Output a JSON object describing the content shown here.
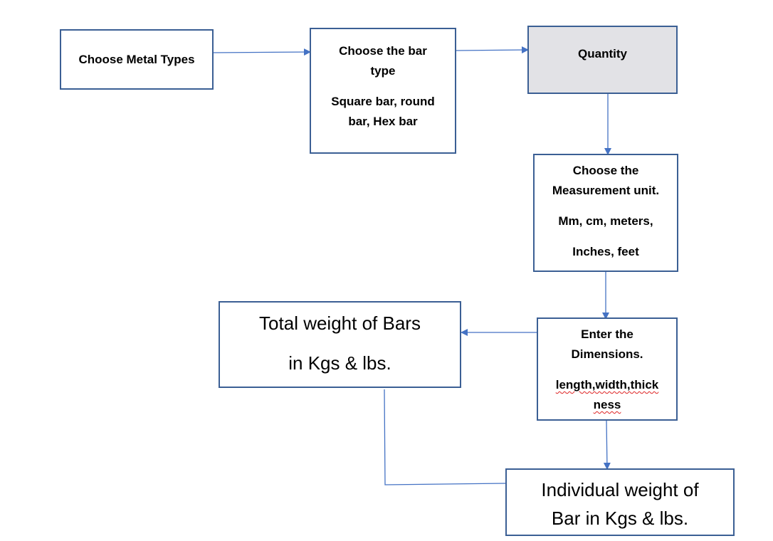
{
  "nodes": {
    "metal": {
      "label": "Choose Metal Types"
    },
    "bar": {
      "line1": "Choose the bar",
      "line2": "type",
      "line3": "Square bar, round",
      "line4": "bar, Hex bar"
    },
    "quantity": {
      "label": "Quantity",
      "fill": "#e2e2e6"
    },
    "unit": {
      "line1": "Choose the",
      "line2": "Measurement unit.",
      "line3": "Mm, cm, meters,",
      "line4": "Inches, feet"
    },
    "dims": {
      "line1": "Enter the",
      "line2": "Dimensions.",
      "line3": "length,width,thick",
      "line4": "ness"
    },
    "total": {
      "line1": "Total weight of Bars",
      "line2": "in Kgs & lbs."
    },
    "individual": {
      "line1": "Individual weight of",
      "line2": "Bar in Kgs & lbs."
    }
  },
  "colors": {
    "border": "#3b5f94",
    "arrow": "#4472c4"
  }
}
